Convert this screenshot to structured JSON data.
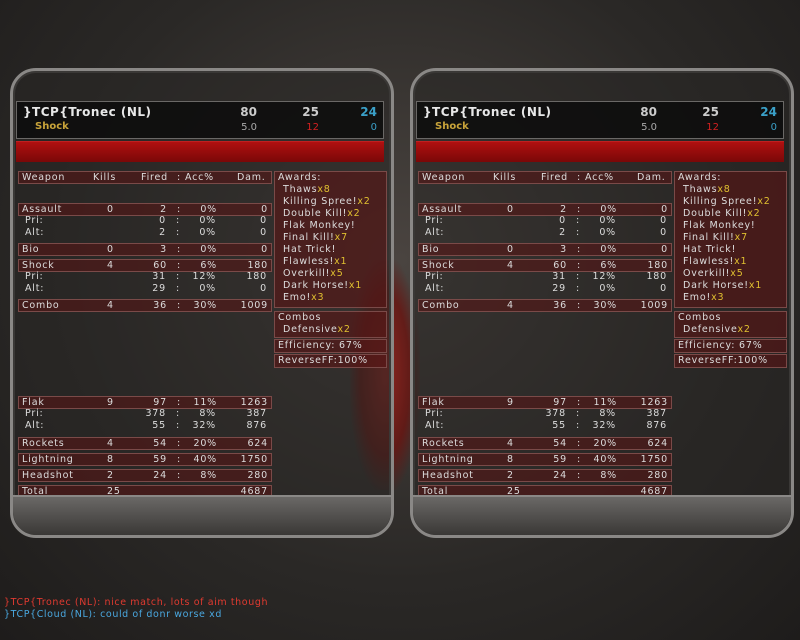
{
  "player": {
    "name": "}TCP{Tronec (NL)",
    "weapon": "Shock",
    "score": "80",
    "kills": "25",
    "deaths": "24",
    "ratio": "5.0",
    "stat2": "12",
    "stat3": "0"
  },
  "columns": [
    "Weapon",
    "Kills",
    "Fired",
    ":",
    "Acc%",
    "Dam."
  ],
  "rows": [
    {
      "w": "Assault",
      "k": "0",
      "f": "2",
      "a": "0%",
      "d": "0",
      "main": true
    },
    {
      "w": "Pri:",
      "k": "",
      "f": "0",
      "a": "0%",
      "d": "0"
    },
    {
      "w": "Alt:",
      "k": "",
      "f": "2",
      "a": "0%",
      "d": "0"
    },
    {
      "w": "Bio",
      "k": "0",
      "f": "3",
      "a": "0%",
      "d": "0",
      "main": true
    },
    {
      "w": "Shock",
      "k": "4",
      "f": "60",
      "a": "6%",
      "d": "180",
      "main": true
    },
    {
      "w": "Pri:",
      "k": "",
      "f": "31",
      "a": "12%",
      "d": "180"
    },
    {
      "w": "Alt:",
      "k": "",
      "f": "29",
      "a": "0%",
      "d": "0"
    },
    {
      "w": "Combo",
      "k": "4",
      "f": "36",
      "a": "30%",
      "d": "1009",
      "main": true
    },
    {
      "w": "Flak",
      "k": "9",
      "f": "97",
      "a": "11%",
      "d": "1263",
      "main": true
    },
    {
      "w": "Pri:",
      "k": "",
      "f": "378",
      "a": "8%",
      "d": "387"
    },
    {
      "w": "Alt:",
      "k": "",
      "f": "55",
      "a": "32%",
      "d": "876"
    },
    {
      "w": "Rockets",
      "k": "4",
      "f": "54",
      "a": "20%",
      "d": "624",
      "main": true
    },
    {
      "w": "Lightning",
      "k": "8",
      "f": "59",
      "a": "40%",
      "d": "1750",
      "main": true
    },
    {
      "w": "Headshot",
      "k": "2",
      "f": "24",
      "a": "8%",
      "d": "280",
      "main": true
    },
    {
      "w": "Total",
      "k": "25",
      "f": "",
      "a": "",
      "d": "4687",
      "main": true,
      "total": true
    }
  ],
  "awards_title": "Awards:",
  "awards": [
    [
      "Thaws",
      "x8"
    ],
    [
      "Killing Spree!",
      "x2"
    ],
    [
      "Double Kill!",
      "x2"
    ],
    [
      "Flak Monkey!",
      ""
    ],
    [
      "Final Kill!",
      "x7"
    ],
    [
      "Hat Trick!",
      ""
    ],
    [
      "Flawless!",
      "x1"
    ],
    [
      "Overkill!",
      "x5"
    ],
    [
      "Dark Horse!",
      "x1"
    ],
    [
      "Emo!",
      "x3"
    ]
  ],
  "combos_title": "Combos",
  "combos": [
    [
      "Defensive",
      "x2"
    ]
  ],
  "efficiency": "Efficiency:  67%",
  "reverseff": "ReverseFF:100%",
  "chat": [
    {
      "text": "}TCP{Tronec (NL): nice match, lots of aim though",
      "color": "#e03a30"
    },
    {
      "text": "}TCP{Cloud (NL): could of donr worse xd",
      "color": "#4aa8e0"
    }
  ],
  "colors": {
    "weapon": "#c9a43a",
    "deaths": "#3aa0c8",
    "stat2": "#d02020",
    "award_count": "#e0c030"
  }
}
